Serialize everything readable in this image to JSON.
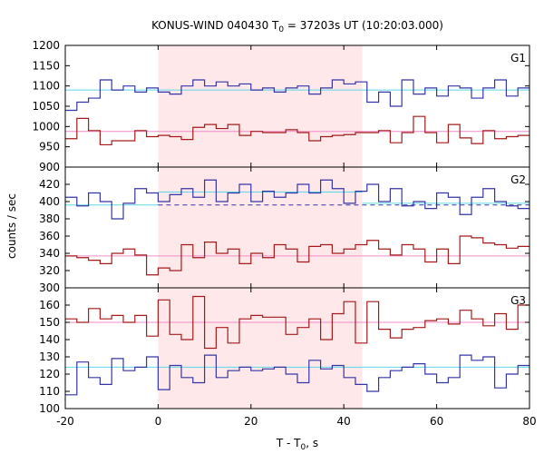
{
  "chart_data": {
    "type": "line",
    "title_main": "KONUS-WIND 040430 T",
    "title_sub": "0",
    "title_rest": " = 37203s UT (10:20:03.000)",
    "xlabel_main": "T - T",
    "xlabel_sub": "0",
    "xlabel_rest": ", s",
    "ylabel": "counts / sec",
    "xlim": [
      -20,
      80
    ],
    "x_ticks": [
      -20,
      0,
      20,
      40,
      60,
      80
    ],
    "highlight_interval": [
      0,
      44
    ],
    "highlight_color": "#ffe8ea",
    "bin_edges": [
      -20,
      -17.5,
      -15,
      -12.5,
      -10,
      -7.5,
      -5,
      -2.5,
      0,
      2.5,
      5,
      7.5,
      10,
      12.5,
      15,
      17.5,
      20,
      22.5,
      25,
      27.5,
      30,
      32.5,
      35,
      37.5,
      40,
      42.5,
      45,
      47.5,
      50,
      52.5,
      55,
      57.5,
      60,
      62.5,
      65,
      67.5,
      70,
      72.5,
      75,
      77.5,
      80
    ],
    "panels": [
      {
        "label": "G1",
        "ylim": [
          900,
          1200
        ],
        "y_ticks": [
          900,
          950,
          1000,
          1050,
          1100,
          1150,
          1200
        ],
        "series": [
          {
            "color": "#3535a8",
            "values": [
              1040,
              1060,
              1070,
              1115,
              1090,
              1100,
              1085,
              1095,
              1085,
              1080,
              1100,
              1115,
              1100,
              1110,
              1100,
              1105,
              1090,
              1095,
              1085,
              1095,
              1100,
              1080,
              1095,
              1115,
              1105,
              1110,
              1060,
              1085,
              1050,
              1115,
              1080,
              1095,
              1075,
              1100,
              1095,
              1070,
              1095,
              1115,
              1075,
              1095
            ]
          },
          {
            "color": "#a51a1a",
            "values": [
              970,
              1020,
              990,
              955,
              965,
              965,
              990,
              975,
              978,
              975,
              968,
              998,
              1005,
              995,
              1005,
              978,
              988,
              985,
              985,
              992,
              985,
              965,
              975,
              978,
              980,
              985,
              985,
              990,
              960,
              985,
              1025,
              985,
              960,
              1005,
              972,
              958,
              990,
              970,
              975,
              978
            ]
          }
        ],
        "fits": [
          {
            "color": "#5ed8e6",
            "segments": [
              {
                "x": [
                  -20,
                  80
                ],
                "y": 1090,
                "style": "solid"
              }
            ]
          },
          {
            "color": "#f08cc8",
            "segments": [
              {
                "x": [
                  -20,
                  80
                ],
                "y": 988,
                "style": "solid"
              }
            ]
          }
        ]
      },
      {
        "label": "G2",
        "ylim": [
          300,
          440
        ],
        "y_ticks": [
          300,
          320,
          340,
          360,
          380,
          400,
          420
        ],
        "series": [
          {
            "color": "#3535a8",
            "values": [
              405,
              395,
              410,
              400,
              380,
              398,
              415,
              410,
              400,
              408,
              415,
              405,
              425,
              400,
              410,
              420,
              400,
              412,
              405,
              410,
              420,
              410,
              425,
              415,
              398,
              412,
              420,
              400,
              415,
              395,
              400,
              392,
              410,
              405,
              385,
              405,
              415,
              400,
              395,
              392
            ]
          },
          {
            "color": "#a51a1a",
            "values": [
              337,
              335,
              332,
              328,
              340,
              345,
              338,
              315,
              323,
              320,
              350,
              335,
              353,
              340,
              345,
              328,
              340,
              335,
              350,
              345,
              330,
              348,
              350,
              340,
              345,
              350,
              355,
              345,
              338,
              350,
              345,
              330,
              345,
              328,
              360,
              358,
              352,
              350,
              346,
              348
            ]
          }
        ],
        "fits": [
          {
            "color": "#5ed8e6",
            "segments": [
              {
                "x": [
                  -20,
                  0
                ],
                "y": 396,
                "style": "solid"
              },
              {
                "x": [
                  0,
                  44
                ],
                "y": 411,
                "style": "solid"
              },
              {
                "x": [
                  44,
                  80
                ],
                "y": 398,
                "style": "solid"
              }
            ]
          },
          {
            "color": "#3535a8",
            "segments": [
              {
                "x": [
                  0,
                  80
                ],
                "y": 396,
                "style": "dashed"
              }
            ]
          },
          {
            "color": "#f08cc8",
            "segments": [
              {
                "x": [
                  -20,
                  80
                ],
                "y": 337,
                "style": "solid"
              }
            ]
          }
        ]
      },
      {
        "label": "G3",
        "ylim": [
          100,
          170
        ],
        "y_ticks": [
          100,
          110,
          120,
          130,
          140,
          150,
          160
        ],
        "series": [
          {
            "color": "#3535a8",
            "values": [
              108,
              127,
              118,
              114,
              129,
              122,
              124,
              130,
              111,
              125,
              118,
              115,
              131,
              118,
              122,
              124,
              122,
              123,
              124,
              120,
              115,
              128,
              123,
              125,
              118,
              114,
              110,
              118,
              122,
              124,
              126,
              120,
              115,
              118,
              131,
              128,
              130,
              112,
              120,
              125
            ]
          },
          {
            "color": "#a51a1a",
            "values": [
              152,
              150,
              158,
              152,
              154,
              150,
              154,
              142,
              163,
              143,
              140,
              165,
              135,
              147,
              138,
              152,
              154,
              153,
              153,
              143,
              147,
              152,
              140,
              155,
              162,
              138,
              162,
              146,
              141,
              146,
              147,
              151,
              152,
              149,
              157,
              152,
              148,
              155,
              146,
              160
            ]
          }
        ],
        "fits": [
          {
            "color": "#5ed8e6",
            "segments": [
              {
                "x": [
                  -20,
                  80
                ],
                "y": 124,
                "style": "solid"
              }
            ]
          },
          {
            "color": "#f08cc8",
            "segments": [
              {
                "x": [
                  -20,
                  80
                ],
                "y": 150,
                "style": "solid"
              }
            ]
          }
        ]
      }
    ]
  }
}
